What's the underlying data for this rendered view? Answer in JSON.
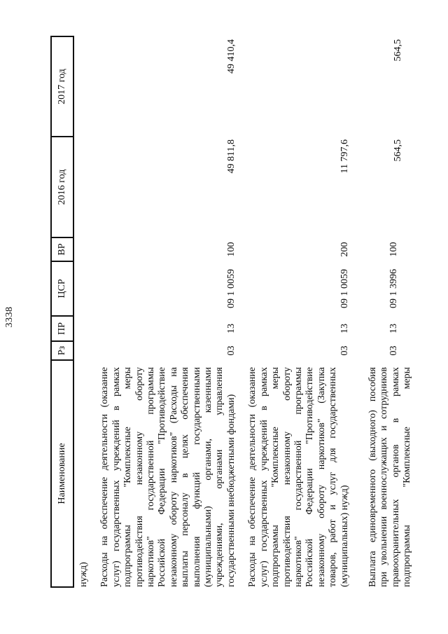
{
  "page_number": "3338",
  "table": {
    "headers": {
      "name": "Наименование",
      "rz": "Рз",
      "pr": "ПР",
      "csr": "ЦСР",
      "vr": "ВР",
      "y2016": "2016 год",
      "y2017": "2017 год"
    },
    "rows": [
      {
        "lines": [
          "нужд)"
        ],
        "rz": "",
        "pr": "",
        "csr": "",
        "vr": "",
        "y2016": "",
        "y2017": ""
      },
      {
        "lines": [
          "Расходы на обеспечение деятельности (оказание",
          "услуг) государственных учреждений в рамках",
          "подпрограммы \"Комплексные меры",
          "противодействия незаконному обороту",
          "наркотиков\" государственной программы",
          "Российской Федерации \"Противодействие",
          "незаконному обороту наркотиков\" (Расходы на",
          "выплаты персоналу в целях обеспечения",
          "выполнения функций государственными",
          "(муниципальными) органами, казенными",
          "учреждениями, органами управления",
          "государственными внебюджетными фондами)"
        ],
        "rz": "03",
        "pr": "13",
        "csr": "09 1 0059",
        "vr": "100",
        "y2016": "49 811,8",
        "y2017": "49 410,4"
      },
      {
        "lines": [
          "Расходы на обеспечение деятельности (оказание",
          "услуг) государственных учреждений в рамках",
          "подпрограммы \"Комплексные меры",
          "противодействия незаконному обороту",
          "наркотиков\" государственной программы",
          "Российской Федерации \"Противодействие",
          "незаконному обороту наркотиков\" (Закупка",
          "товаров, работ и услуг для государственных",
          "(муниципальных) нужд)"
        ],
        "rz": "03",
        "pr": "13",
        "csr": "09 1 0059",
        "vr": "200",
        "y2016": "11 797,6",
        "y2017": ""
      },
      {
        "lines": [
          "Выплата единовременного (выходного) пособия",
          "при увольнении военнослужащих и сотрудников",
          "правоохранительных органов в рамках",
          "подпрограммы \"Комплексные меры"
        ],
        "rz": "03",
        "pr": "13",
        "csr": "09 1 3996",
        "vr": "100",
        "y2016": "564,5",
        "y2017": "564,5"
      }
    ]
  }
}
